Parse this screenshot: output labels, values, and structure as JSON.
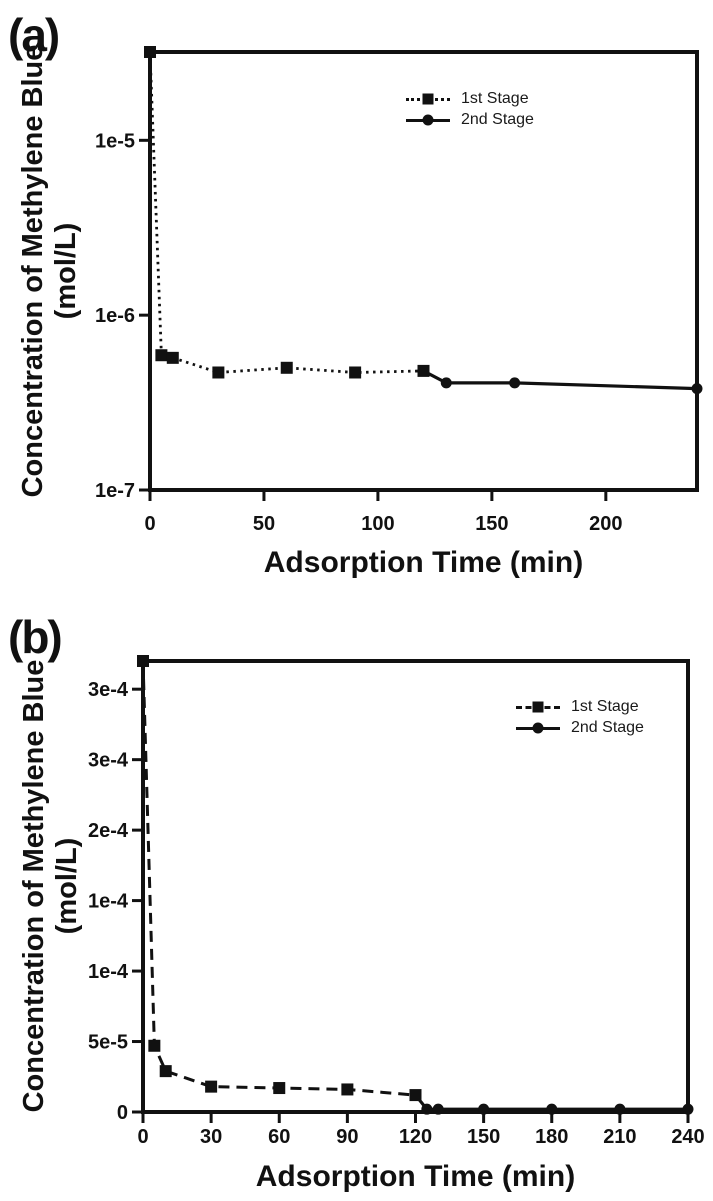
{
  "colors": {
    "ink": "#111111",
    "background": "#ffffff"
  },
  "chart_data": [
    {
      "panel_label": "(a)",
      "type": "line",
      "xlabel": "Adsorption Time (min)",
      "ylabel": "Concentration of Methylene Blue",
      "ylabel_line2": "(mol/L)",
      "x_scale": "linear",
      "y_scale": "log",
      "xlim": [
        0,
        240
      ],
      "ylim": [
        1e-07,
        3.2e-05
      ],
      "grid": false,
      "legend_position": "upper-center-right-inside",
      "x_ticks": [
        {
          "v": 0,
          "label": "0"
        },
        {
          "v": 50,
          "label": "50"
        },
        {
          "v": 100,
          "label": "100"
        },
        {
          "v": 150,
          "label": "150"
        },
        {
          "v": 200,
          "label": "200"
        }
      ],
      "y_ticks": [
        {
          "v": 1e-05,
          "label": "1e-5"
        },
        {
          "v": 1e-06,
          "label": "1e-6"
        },
        {
          "v": 1e-07,
          "label": "1e-7"
        }
      ],
      "series": [
        {
          "name": "1st Stage",
          "marker": "square",
          "line_style": "dotted",
          "marker_start_index": 0,
          "points": [
            [
              0,
              3.2e-05
            ],
            [
              5,
              5.9e-07
            ],
            [
              10,
              5.7e-07
            ],
            [
              30,
              4.7e-07
            ],
            [
              60,
              5e-07
            ],
            [
              90,
              4.7e-07
            ],
            [
              120,
              4.8e-07
            ]
          ]
        },
        {
          "name": "2nd Stage",
          "marker": "circle",
          "line_style": "solid",
          "marker_start_index": 1,
          "points": [
            [
              120,
              4.8e-07
            ],
            [
              130,
              4.1e-07
            ],
            [
              160,
              4.1e-07
            ],
            [
              240,
              3.8e-07
            ]
          ]
        }
      ]
    },
    {
      "panel_label": "(b)",
      "type": "line",
      "xlabel": "Adsorption Time (min)",
      "ylabel": "Concentration of Methylene Blue",
      "ylabel_line2": "(mol/L)",
      "x_scale": "linear",
      "y_scale": "linear",
      "xlim": [
        0,
        240
      ],
      "ylim": [
        0,
        0.00032
      ],
      "grid": false,
      "legend_position": "upper-right-inside",
      "x_ticks": [
        {
          "v": 0,
          "label": "0"
        },
        {
          "v": 30,
          "label": "30"
        },
        {
          "v": 60,
          "label": "60"
        },
        {
          "v": 90,
          "label": "90"
        },
        {
          "v": 120,
          "label": "120"
        },
        {
          "v": 150,
          "label": "150"
        },
        {
          "v": 180,
          "label": "180"
        },
        {
          "v": 210,
          "label": "210"
        },
        {
          "v": 240,
          "label": "240"
        }
      ],
      "y_ticks": [
        {
          "v": 0.0003,
          "label": "3e-4"
        },
        {
          "v": 0.00025,
          "label": "3e-4"
        },
        {
          "v": 0.0002,
          "label": "2e-4"
        },
        {
          "v": 0.00015,
          "label": "1e-4"
        },
        {
          "v": 0.0001,
          "label": "1e-4"
        },
        {
          "v": 5e-05,
          "label": "5e-5"
        },
        {
          "v": 0,
          "label": "0"
        }
      ],
      "series": [
        {
          "name": "1st Stage",
          "marker": "square",
          "line_style": "dashed",
          "marker_start_index": 0,
          "points": [
            [
              0,
              0.00032
            ],
            [
              5,
              4.7e-05
            ],
            [
              10,
              2.9e-05
            ],
            [
              30,
              1.8e-05
            ],
            [
              60,
              1.7e-05
            ],
            [
              90,
              1.6e-05
            ],
            [
              120,
              1.2e-05
            ]
          ]
        },
        {
          "name": "2nd Stage",
          "marker": "circle",
          "line_style": "solid",
          "marker_start_index": 1,
          "points": [
            [
              120,
              1.2e-05
            ],
            [
              125,
              2e-06
            ],
            [
              130,
              2e-06
            ],
            [
              150,
              2e-06
            ],
            [
              180,
              2e-06
            ],
            [
              210,
              2e-06
            ],
            [
              240,
              2e-06
            ]
          ]
        }
      ]
    }
  ]
}
